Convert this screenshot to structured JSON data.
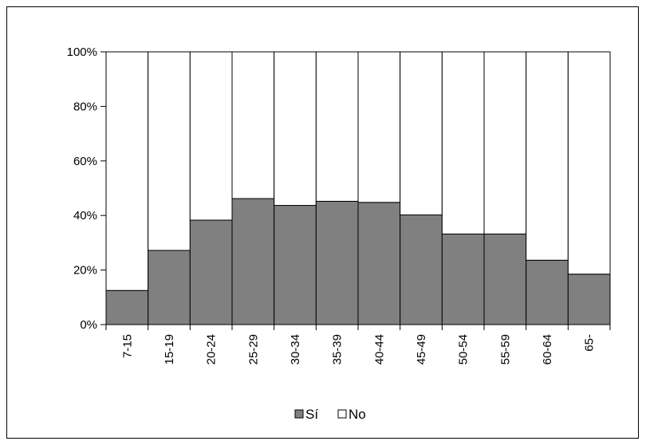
{
  "chart_data": {
    "type": "bar",
    "stacked": true,
    "percent_stacked": true,
    "categories": [
      "7-15",
      "15-19",
      "20-24",
      "25-29",
      "30-34",
      "35-39",
      "40-44",
      "45-49",
      "50-54",
      "55-59",
      "60-64",
      "65-"
    ],
    "series": [
      {
        "name": "Sí",
        "color": "#808080",
        "values": [
          12.5,
          27.2,
          38.3,
          46.2,
          43.7,
          45.2,
          44.8,
          40.2,
          33.2,
          33.2,
          23.6,
          18.5
        ]
      },
      {
        "name": "No",
        "color": "#ffffff",
        "values": [
          87.5,
          72.8,
          61.7,
          53.8,
          56.3,
          54.8,
          55.2,
          59.8,
          66.8,
          66.8,
          76.4,
          81.5
        ]
      }
    ],
    "y_ticks": [
      "0%",
      "20%",
      "40%",
      "60%",
      "80%",
      "100%"
    ],
    "ylim": [
      0,
      100
    ],
    "grid": false,
    "legend_position": "bottom",
    "xlabel_rotation": -90
  }
}
